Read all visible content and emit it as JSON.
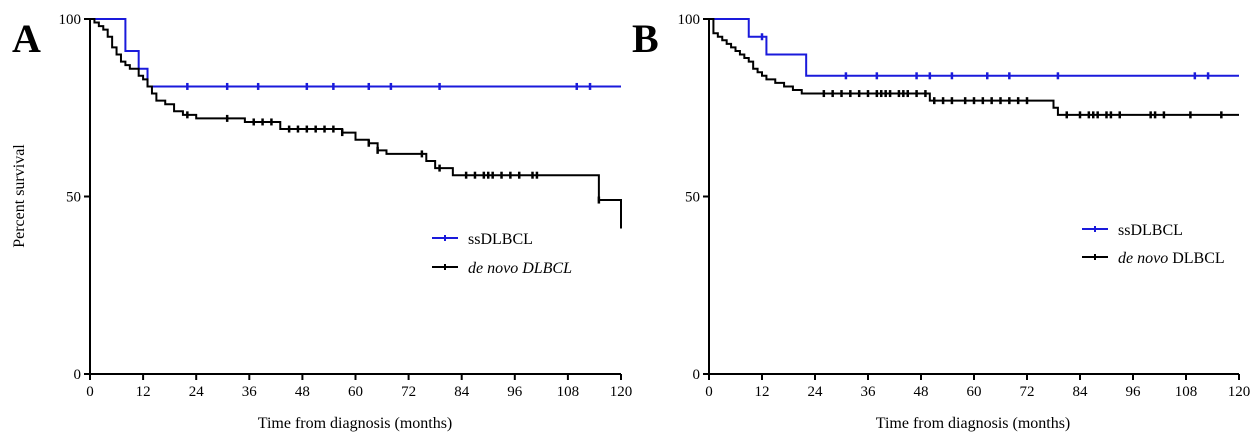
{
  "chart_data": [
    {
      "panel_label": "A",
      "type": "line",
      "step": true,
      "xlabel": "Time from diagnosis (months)",
      "ylabel": "Percent survival",
      "xlim": [
        0,
        120
      ],
      "ylim": [
        0,
        100
      ],
      "xticks": [
        "0",
        "12",
        "24",
        "36",
        "48",
        "60",
        "72",
        "84",
        "96",
        "108",
        "120"
      ],
      "yticks": [
        "0",
        "50",
        "100"
      ],
      "legend_position": "center-right",
      "series": [
        {
          "name": "ssDLBCL",
          "italic": false,
          "color": "#1a1adb",
          "x": [
            0,
            8,
            8,
            11,
            11,
            13,
            13,
            120
          ],
          "y": [
            100,
            100,
            91,
            91,
            86,
            86,
            81,
            81
          ],
          "censor_x": [
            22,
            31,
            38,
            49,
            55,
            63,
            68,
            79,
            110,
            113
          ]
        },
        {
          "name": "de novo DLBCL",
          "italic": true,
          "color": "#000000",
          "x": [
            0,
            1,
            2,
            3,
            4,
            5,
            6,
            7,
            8,
            9,
            10,
            11,
            12,
            13,
            14,
            15,
            17,
            19,
            21,
            24,
            35,
            43,
            57,
            60,
            63,
            65,
            67,
            70,
            76,
            78,
            82,
            100,
            115,
            115,
            120,
            120
          ],
          "y": [
            100,
            99,
            98,
            97,
            95,
            92,
            90,
            88,
            87,
            86,
            86,
            84,
            83,
            81,
            79,
            77,
            76,
            74,
            73,
            72,
            71,
            69,
            68,
            66,
            65,
            63,
            62,
            62,
            60,
            58,
            56,
            56,
            56,
            49,
            49,
            41
          ],
          "censor_x": [
            22,
            31,
            37,
            39,
            41,
            45,
            47,
            49,
            51,
            53,
            55,
            57,
            63,
            65,
            75,
            79,
            85,
            87,
            89,
            90,
            91,
            93,
            95,
            97,
            100,
            101,
            115
          ]
        }
      ]
    },
    {
      "panel_label": "B",
      "type": "line",
      "step": true,
      "xlabel": "Time from diagnosis (months)",
      "ylabel": "",
      "xlim": [
        0,
        120
      ],
      "ylim": [
        0,
        100
      ],
      "xticks": [
        "0",
        "12",
        "24",
        "36",
        "48",
        "60",
        "72",
        "84",
        "96",
        "108",
        "120"
      ],
      "yticks": [
        "0",
        "50",
        "100"
      ],
      "legend_position": "center-right",
      "series": [
        {
          "name": "ssDLBCL",
          "italic": false,
          "color": "#1a1adb",
          "x": [
            0,
            9,
            9,
            13,
            13,
            22,
            22,
            120
          ],
          "y": [
            100,
            100,
            95,
            95,
            90,
            90,
            84,
            84
          ],
          "censor_x": [
            12,
            31,
            38,
            47,
            50,
            55,
            63,
            68,
            79,
            110,
            113
          ]
        },
        {
          "name": "de novo DLBCL",
          "italic": false,
          "italic_part": "de novo",
          "color": "#000000",
          "x": [
            0,
            1,
            2,
            3,
            4,
            5,
            6,
            7,
            8,
            9,
            10,
            11,
            12,
            13,
            15,
            17,
            19,
            21,
            24,
            49,
            50,
            76,
            78,
            79,
            120
          ],
          "y": [
            100,
            96,
            95,
            94,
            93,
            92,
            91,
            90,
            89,
            88,
            86,
            85,
            84,
            83,
            82,
            81,
            80,
            79,
            79,
            79,
            77,
            77,
            75,
            73,
            73
          ],
          "censor_x": [
            26,
            28,
            30,
            32,
            34,
            36,
            38,
            39,
            40,
            41,
            43,
            44,
            45,
            47,
            49,
            51,
            53,
            55,
            58,
            60,
            62,
            64,
            66,
            68,
            70,
            72,
            81,
            84,
            86,
            87,
            88,
            90,
            91,
            93,
            100,
            101,
            103,
            109,
            116
          ]
        }
      ]
    }
  ]
}
